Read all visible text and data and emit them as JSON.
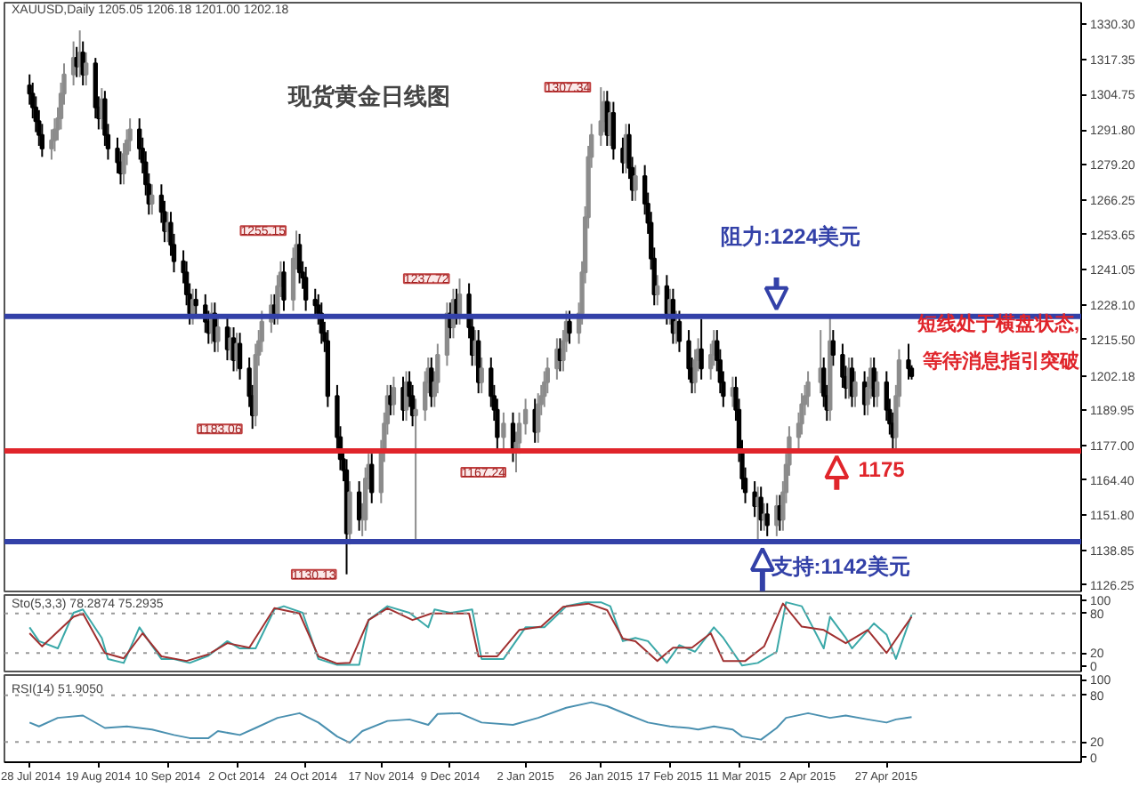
{
  "chart_data": [
    {
      "type": "candlestick",
      "title": "现货黄金日线图",
      "subtitle": "XAUUSD,Daily 1205.05 1206.18 1201.00 1202.18",
      "tick_labels": "y",
      "x": [
        "2014-07-28",
        "2014-07-29",
        "2014-07-30",
        "2014-07-31",
        "2014-08-01",
        "2014-08-04",
        "2014-08-05",
        "2014-08-06",
        "2014-08-07",
        "2014-08-08",
        "2014-08-11",
        "2014-08-12",
        "2014-08-13",
        "2014-08-14",
        "2014-08-15",
        "2014-08-18",
        "2014-08-19",
        "2014-08-20",
        "2014-08-21",
        "2014-08-22",
        "2014-08-25",
        "2014-08-26",
        "2014-08-27",
        "2014-08-28",
        "2014-08-29",
        "2014-09-01",
        "2014-09-02",
        "2014-09-03",
        "2014-09-04",
        "2014-09-05",
        "2014-09-08",
        "2014-09-09",
        "2014-09-10",
        "2014-09-11",
        "2014-09-12",
        "2014-09-15",
        "2014-09-16",
        "2014-09-17",
        "2014-09-18",
        "2014-09-19",
        "2014-09-22",
        "2014-09-23",
        "2014-09-24",
        "2014-09-25",
        "2014-09-26",
        "2014-09-29",
        "2014-09-30",
        "2014-10-01",
        "2014-10-02",
        "2014-10-03",
        "2014-10-06",
        "2014-10-07",
        "2014-10-08",
        "2014-10-09",
        "2014-10-10",
        "2014-10-13",
        "2014-10-14",
        "2014-10-15",
        "2014-10-16",
        "2014-10-17",
        "2014-10-20",
        "2014-10-21",
        "2014-10-22",
        "2014-10-23",
        "2014-10-24",
        "2014-10-27",
        "2014-10-28",
        "2014-10-29",
        "2014-10-30",
        "2014-10-31",
        "2014-11-03",
        "2014-11-04",
        "2014-11-05",
        "2014-11-06",
        "2014-11-07",
        "2014-11-10",
        "2014-11-11",
        "2014-11-12",
        "2014-11-13",
        "2014-11-14",
        "2014-11-17",
        "2014-11-18",
        "2014-11-19",
        "2014-11-20",
        "2014-11-21",
        "2014-11-24",
        "2014-11-25",
        "2014-11-26",
        "2014-11-27",
        "2014-11-28",
        "2014-12-01",
        "2014-12-02",
        "2014-12-03",
        "2014-12-04",
        "2014-12-05",
        "2014-12-08",
        "2014-12-09",
        "2014-12-10",
        "2014-12-11",
        "2014-12-12",
        "2014-12-15",
        "2014-12-16",
        "2014-12-17",
        "2014-12-18",
        "2014-12-19",
        "2014-12-22",
        "2014-12-23",
        "2014-12-24",
        "2014-12-26",
        "2014-12-29",
        "2014-12-30",
        "2014-12-31",
        "2015-01-02",
        "2015-01-05",
        "2015-01-06",
        "2015-01-07",
        "2015-01-08",
        "2015-01-09",
        "2015-01-12",
        "2015-01-13",
        "2015-01-14",
        "2015-01-15",
        "2015-01-16",
        "2015-01-19",
        "2015-01-20",
        "2015-01-21",
        "2015-01-22",
        "2015-01-23",
        "2015-01-26",
        "2015-01-27",
        "2015-01-28",
        "2015-01-29",
        "2015-01-30",
        "2015-02-02",
        "2015-02-03",
        "2015-02-04",
        "2015-02-05",
        "2015-02-06",
        "2015-02-09",
        "2015-02-10",
        "2015-02-11",
        "2015-02-12",
        "2015-02-13",
        "2015-02-16",
        "2015-02-17",
        "2015-02-18",
        "2015-02-19",
        "2015-02-20",
        "2015-02-23",
        "2015-02-24",
        "2015-02-25",
        "2015-02-26",
        "2015-02-27",
        "2015-03-02",
        "2015-03-03",
        "2015-03-04",
        "2015-03-05",
        "2015-03-06",
        "2015-03-09",
        "2015-03-10",
        "2015-03-11",
        "2015-03-12",
        "2015-03-13",
        "2015-03-16",
        "2015-03-17",
        "2015-03-18",
        "2015-03-19",
        "2015-03-20",
        "2015-03-23",
        "2015-03-24",
        "2015-03-25",
        "2015-03-26",
        "2015-03-27",
        "2015-03-30",
        "2015-03-31",
        "2015-04-01",
        "2015-04-02",
        "2015-04-06",
        "2015-04-07",
        "2015-04-08",
        "2015-04-09",
        "2015-04-10",
        "2015-04-13",
        "2015-04-14",
        "2015-04-15",
        "2015-04-16",
        "2015-04-17",
        "2015-04-20",
        "2015-04-21",
        "2015-04-22",
        "2015-04-23",
        "2015-04-24",
        "2015-04-27",
        "2015-04-28",
        "2015-04-29",
        "2015-04-30",
        "2015-05-01",
        "2015-05-04",
        "2015-05-05"
      ],
      "ohlc": [
        [
          1308,
          1312,
          1301,
          1305
        ],
        [
          1305,
          1309,
          1296,
          1300
        ],
        [
          1300,
          1304,
          1291,
          1295
        ],
        [
          1295,
          1299,
          1286,
          1290
        ],
        [
          1290,
          1294,
          1282,
          1285
        ],
        [
          1285,
          1292,
          1281,
          1288
        ],
        [
          1288,
          1296,
          1284,
          1292
        ],
        [
          1292,
          1300,
          1288,
          1296
        ],
        [
          1296,
          1309,
          1292,
          1305
        ],
        [
          1305,
          1316,
          1301,
          1312
        ],
        [
          1312,
          1324,
          1308,
          1318
        ],
        [
          1318,
          1322,
          1311,
          1315
        ],
        [
          1315,
          1328,
          1311,
          1320
        ],
        [
          1320,
          1324,
          1308,
          1312
        ],
        [
          1312,
          1320,
          1308,
          1316
        ],
        [
          1316,
          1318,
          1296,
          1300
        ],
        [
          1300,
          1304,
          1292,
          1296
        ],
        [
          1296,
          1307,
          1292,
          1303
        ],
        [
          1303,
          1306,
          1286,
          1290
        ],
        [
          1290,
          1294,
          1281,
          1285
        ],
        [
          1285,
          1289,
          1276,
          1280
        ],
        [
          1280,
          1284,
          1272,
          1276
        ],
        [
          1276,
          1287,
          1272,
          1283
        ],
        [
          1283,
          1292,
          1279,
          1288
        ],
        [
          1288,
          1296,
          1284,
          1292
        ],
        [
          1292,
          1296,
          1281,
          1285
        ],
        [
          1285,
          1289,
          1276,
          1280
        ],
        [
          1280,
          1284,
          1268,
          1272
        ],
        [
          1272,
          1276,
          1261,
          1265
        ],
        [
          1265,
          1272,
          1261,
          1268
        ],
        [
          1268,
          1272,
          1258,
          1262
        ],
        [
          1262,
          1266,
          1251,
          1255
        ],
        [
          1255,
          1262,
          1251,
          1258
        ],
        [
          1258,
          1262,
          1246,
          1250
        ],
        [
          1250,
          1254,
          1240,
          1244
        ],
        [
          1244,
          1248,
          1236,
          1240
        ],
        [
          1240,
          1244,
          1228,
          1232
        ],
        [
          1232,
          1236,
          1221,
          1225
        ],
        [
          1225,
          1234,
          1221,
          1230
        ],
        [
          1230,
          1234,
          1224,
          1228
        ],
        [
          1228,
          1232,
          1218,
          1222
        ],
        [
          1222,
          1226,
          1214,
          1218
        ],
        [
          1218,
          1229,
          1214,
          1225
        ],
        [
          1225,
          1229,
          1211,
          1215
        ],
        [
          1215,
          1224,
          1211,
          1220
        ],
        [
          1220,
          1224,
          1208,
          1212
        ],
        [
          1212,
          1220,
          1208,
          1216
        ],
        [
          1216,
          1220,
          1204,
          1208
        ],
        [
          1208,
          1218,
          1204,
          1214
        ],
        [
          1214,
          1218,
          1201,
          1205
        ],
        [
          1205,
          1209,
          1191,
          1195
        ],
        [
          1195,
          1199,
          1183.06,
          1188
        ],
        [
          1188,
          1214,
          1184,
          1210
        ],
        [
          1210,
          1219,
          1206,
          1215
        ],
        [
          1215,
          1226,
          1211,
          1222
        ],
        [
          1222,
          1232,
          1218,
          1228
        ],
        [
          1228,
          1232,
          1221,
          1225
        ],
        [
          1225,
          1239,
          1221,
          1235
        ],
        [
          1235,
          1244,
          1231,
          1240
        ],
        [
          1240,
          1244,
          1226,
          1230
        ],
        [
          1230,
          1249,
          1226,
          1245
        ],
        [
          1245,
          1255.15,
          1241,
          1250
        ],
        [
          1250,
          1254,
          1236,
          1240
        ],
        [
          1240,
          1244,
          1234,
          1238
        ],
        [
          1238,
          1242,
          1226,
          1230
        ],
        [
          1230,
          1234,
          1224,
          1228
        ],
        [
          1228,
          1232,
          1221,
          1225
        ],
        [
          1225,
          1229,
          1214,
          1218
        ],
        [
          1218,
          1222,
          1211,
          1215
        ],
        [
          1215,
          1219,
          1191,
          1195
        ],
        [
          1195,
          1199,
          1176,
          1180
        ],
        [
          1180,
          1184,
          1168,
          1172
        ],
        [
          1172,
          1176,
          1164,
          1168
        ],
        [
          1168,
          1172,
          1130.13,
          1145
        ],
        [
          1145,
          1164,
          1141,
          1160
        ],
        [
          1160,
          1164,
          1146,
          1150
        ],
        [
          1150,
          1156,
          1144,
          1150
        ],
        [
          1150,
          1169,
          1146,
          1165
        ],
        [
          1165,
          1174,
          1161,
          1170
        ],
        [
          1170,
          1174,
          1156,
          1160
        ],
        [
          1160,
          1179,
          1156,
          1175
        ],
        [
          1175,
          1189,
          1171,
          1185
        ],
        [
          1185,
          1199,
          1181,
          1195
        ],
        [
          1195,
          1199,
          1188,
          1192
        ],
        [
          1192,
          1202,
          1188,
          1198
        ],
        [
          1198,
          1202,
          1186,
          1190
        ],
        [
          1190,
          1204,
          1186,
          1200
        ],
        [
          1200,
          1204,
          1191,
          1195
        ],
        [
          1195,
          1199,
          1184,
          1188
        ],
        [
          1188,
          1194,
          1143,
          1190
        ],
        [
          1190,
          1204,
          1186,
          1200
        ],
        [
          1200,
          1209,
          1196,
          1205
        ],
        [
          1205,
          1209,
          1191,
          1195
        ],
        [
          1195,
          1204,
          1191,
          1200
        ],
        [
          1200,
          1214,
          1196,
          1210
        ],
        [
          1210,
          1229,
          1206,
          1225
        ],
        [
          1225,
          1229,
          1216,
          1220
        ],
        [
          1220,
          1234,
          1216,
          1230
        ],
        [
          1230,
          1234,
          1221,
          1225
        ],
        [
          1225,
          1237.72,
          1221,
          1232
        ],
        [
          1232,
          1236,
          1216,
          1220
        ],
        [
          1220,
          1224,
          1206,
          1210
        ],
        [
          1210,
          1219,
          1206,
          1215
        ],
        [
          1215,
          1219,
          1196,
          1200
        ],
        [
          1200,
          1209,
          1196,
          1205
        ],
        [
          1205,
          1209,
          1191,
          1195
        ],
        [
          1195,
          1199,
          1186,
          1190
        ],
        [
          1190,
          1194,
          1176,
          1180
        ],
        [
          1180,
          1189,
          1176,
          1185
        ],
        [
          1185,
          1189,
          1171,
          1175
        ],
        [
          1175,
          1182,
          1167.24,
          1178
        ],
        [
          1178,
          1189,
          1174,
          1185
        ],
        [
          1185,
          1194,
          1181,
          1190
        ],
        [
          1190,
          1194,
          1178,
          1182
        ],
        [
          1182,
          1196,
          1178,
          1192
        ],
        [
          1192,
          1199,
          1188,
          1195
        ],
        [
          1195,
          1204,
          1191,
          1200
        ],
        [
          1200,
          1209,
          1196,
          1205
        ],
        [
          1205,
          1216,
          1201,
          1212
        ],
        [
          1212,
          1216,
          1204,
          1208
        ],
        [
          1208,
          1219,
          1204,
          1215
        ],
        [
          1215,
          1226,
          1211,
          1222
        ],
        [
          1222,
          1226,
          1214,
          1218
        ],
        [
          1218,
          1229,
          1214,
          1225
        ],
        [
          1225,
          1244,
          1221,
          1240
        ],
        [
          1240,
          1264,
          1236,
          1260
        ],
        [
          1260,
          1286,
          1256,
          1282
        ],
        [
          1282,
          1294,
          1278,
          1290
        ],
        [
          1290,
          1307.34,
          1286,
          1295
        ],
        [
          1295,
          1306,
          1291,
          1302
        ],
        [
          1302,
          1306,
          1286,
          1290
        ],
        [
          1290,
          1302,
          1286,
          1298
        ],
        [
          1298,
          1302,
          1281,
          1285
        ],
        [
          1285,
          1289,
          1276,
          1280
        ],
        [
          1280,
          1294,
          1276,
          1290
        ],
        [
          1290,
          1294,
          1274,
          1278
        ],
        [
          1278,
          1282,
          1266,
          1270
        ],
        [
          1270,
          1279,
          1266,
          1275
        ],
        [
          1275,
          1279,
          1261,
          1265
        ],
        [
          1265,
          1269,
          1254,
          1258
        ],
        [
          1258,
          1262,
          1241,
          1245
        ],
        [
          1245,
          1249,
          1228,
          1232
        ],
        [
          1232,
          1239,
          1228,
          1235
        ],
        [
          1235,
          1239,
          1221,
          1225
        ],
        [
          1225,
          1234,
          1221,
          1230
        ],
        [
          1230,
          1234,
          1214,
          1218
        ],
        [
          1218,
          1226,
          1214,
          1222
        ],
        [
          1222,
          1226,
          1211,
          1215
        ],
        [
          1215,
          1219,
          1201,
          1205
        ],
        [
          1205,
          1209,
          1196,
          1200
        ],
        [
          1200,
          1212,
          1196,
          1208
        ],
        [
          1208,
          1216,
          1204,
          1212
        ],
        [
          1212,
          1223,
          1201,
          1205
        ],
        [
          1205,
          1214,
          1201,
          1210
        ],
        [
          1210,
          1219,
          1206,
          1215
        ],
        [
          1215,
          1219,
          1204,
          1208
        ],
        [
          1208,
          1212,
          1196,
          1200
        ],
        [
          1200,
          1204,
          1191,
          1195
        ],
        [
          1195,
          1202,
          1191,
          1198
        ],
        [
          1198,
          1202,
          1186,
          1190
        ],
        [
          1190,
          1194,
          1171,
          1175
        ],
        [
          1175,
          1179,
          1161,
          1165
        ],
        [
          1165,
          1169,
          1156,
          1160
        ],
        [
          1160,
          1164,
          1151,
          1155
        ],
        [
          1155,
          1162,
          1142,
          1158
        ],
        [
          1158,
          1162,
          1146,
          1150
        ],
        [
          1150,
          1156,
          1146,
          1152
        ],
        [
          1152,
          1156,
          1144,
          1148
        ],
        [
          1148,
          1159,
          1144,
          1155
        ],
        [
          1155,
          1159,
          1146,
          1150
        ],
        [
          1150,
          1164,
          1146,
          1160
        ],
        [
          1160,
          1174,
          1156,
          1170
        ],
        [
          1170,
          1184,
          1166,
          1180
        ],
        [
          1180,
          1189,
          1176,
          1185
        ],
        [
          1185,
          1196,
          1181,
          1192
        ],
        [
          1192,
          1199,
          1188,
          1195
        ],
        [
          1195,
          1204,
          1191,
          1200
        ],
        [
          1200,
          1219,
          1196,
          1205
        ],
        [
          1205,
          1209,
          1191,
          1195
        ],
        [
          1195,
          1199,
          1186,
          1190
        ],
        [
          1190,
          1224,
          1186,
          1215
        ],
        [
          1215,
          1219,
          1206,
          1210
        ],
        [
          1210,
          1214,
          1198,
          1202
        ],
        [
          1202,
          1206,
          1194,
          1198
        ],
        [
          1198,
          1209,
          1194,
          1205
        ],
        [
          1205,
          1209,
          1191,
          1195
        ],
        [
          1195,
          1204,
          1191,
          1200
        ],
        [
          1200,
          1204,
          1188,
          1192
        ],
        [
          1192,
          1202,
          1188,
          1198
        ],
        [
          1198,
          1209,
          1194,
          1205
        ],
        [
          1205,
          1209,
          1191,
          1195
        ],
        [
          1195,
          1204,
          1191,
          1200
        ],
        [
          1200,
          1204,
          1186,
          1190
        ],
        [
          1190,
          1194,
          1181,
          1185
        ],
        [
          1185,
          1189,
          1175,
          1180
        ],
        [
          1180,
          1199,
          1176,
          1195
        ],
        [
          1195,
          1212,
          1191,
          1208
        ],
        [
          1208,
          1214,
          1201,
          1205.05
        ],
        [
          1205.05,
          1206.18,
          1201.0,
          1202.18
        ]
      ],
      "xlim": [
        "2014-07-20",
        "2015-06-28"
      ],
      "ylim": [
        1123.9,
        1338.1
      ],
      "yticks": [
        {
          "value": 1330.3,
          "label": "1330.30"
        },
        1317.35,
        1304.75,
        {
          "value": 1291.8,
          "label": "1291.80"
        },
        {
          "value": 1279.2,
          "label": "1279.20"
        },
        1266.25,
        1253.65,
        1241.05,
        {
          "value": 1228.1,
          "label": "1228.10"
        },
        {
          "value": 1215.5,
          "label": "1215.50"
        },
        1202.18,
        1189.95,
        {
          "value": 1177,
          "label": "1177.00"
        },
        {
          "value": 1164.4,
          "label": "1164.40"
        },
        {
          "value": 1151.8,
          "label": "1151.80"
        },
        1138.85,
        1126.25
      ],
      "ref_lines": [
        {
          "axis": "y",
          "value": 1224,
          "label": "阻力:1224美元",
          "color": "#3341a8"
        },
        {
          "axis": "y",
          "value": 1142,
          "label": "支持:1142美元",
          "color": "#3341a8"
        },
        {
          "axis": "y",
          "value": 1175,
          "label": "1175",
          "color": "#e0252b"
        }
      ],
      "annotations": [
        "短线处于横盘状态,",
        "等待消息指引突破",
        {
          "text": "1183.06",
          "x": "2014-10-07",
          "y": 1183.06
        },
        {
          "text": "1255.15",
          "x": "2014-10-21",
          "y": 1255.15
        },
        {
          "text": "1130.13",
          "x": "2014-11-06",
          "y": 1130.13
        },
        {
          "text": "1237.72",
          "x": "2014-12-12",
          "y": 1237.72
        },
        {
          "text": "1167.24",
          "x": "2014-12-30",
          "y": 1167.24
        },
        {
          "text": "1307.34",
          "x": "2015-01-26",
          "y": 1307.34
        }
      ]
    },
    {
      "type": "line",
      "title": "Sto(5,3,3) 78.2874 75.2935",
      "tick_labels": "y",
      "xlim": [
        "2014-07-20",
        "2015-06-28"
      ],
      "ylim": [
        -8,
        108
      ],
      "yticks": [
        0,
        20,
        80,
        100
      ],
      "ref_lines": [
        {
          "axis": "y",
          "value": 20,
          "color": "#999999",
          "line_style": "dotted"
        },
        {
          "axis": "y",
          "value": 80,
          "color": "#999999",
          "line_style": "dotted"
        }
      ],
      "series": [
        {
          "color": "#3aa8a8",
          "x": [
            "2014-07-28",
            "2014-07-31",
            "2014-08-06",
            "2014-08-11",
            "2014-08-14",
            "2014-08-20",
            "2014-08-22",
            "2014-08-27",
            "2014-09-01",
            "2014-09-04",
            "2014-09-08",
            "2014-09-12",
            "2014-09-17",
            "2014-09-23",
            "2014-09-29",
            "2014-10-03",
            "2014-10-08",
            "2014-10-14",
            "2014-10-17",
            "2014-10-23",
            "2014-10-28",
            "2014-11-03",
            "2014-11-10",
            "2014-11-13",
            "2014-11-19",
            "2014-11-26",
            "2014-12-02",
            "2014-12-04",
            "2014-12-09",
            "2014-12-16",
            "2014-12-19",
            "2014-12-26",
            "2015-01-02",
            "2015-01-08",
            "2015-01-15",
            "2015-01-21",
            "2015-01-26",
            "2015-01-29",
            "2015-02-02",
            "2015-02-06",
            "2015-02-10",
            "2015-02-16",
            "2015-02-20",
            "2015-02-25",
            "2015-03-03",
            "2015-03-06",
            "2015-03-12",
            "2015-03-17",
            "2015-03-23",
            "2015-03-26",
            "2015-03-31",
            "2015-04-07",
            "2015-04-09",
            "2015-04-14",
            "2015-04-16",
            "2015-04-23",
            "2015-04-27",
            "2015-04-30",
            "2015-05-05"
          ],
          "values": [
            59,
            38,
            27,
            81,
            86,
            43,
            11,
            5,
            59,
            38,
            11,
            11,
            5,
            16,
            38,
            27,
            27,
            86,
            91,
            81,
            11,
            2,
            2,
            70,
            91,
            81,
            59,
            86,
            81,
            86,
            11,
            11,
            59,
            59,
            91,
            97,
            97,
            91,
            38,
            43,
            38,
            5,
            32,
            22,
            59,
            43,
            1,
            5,
            22,
            97,
            91,
            27,
            75,
            43,
            27,
            65,
            48,
            11,
            78
          ]
        },
        {
          "color": "#a03030",
          "x": [
            "2014-07-28",
            "2014-08-01",
            "2014-08-11",
            "2014-08-14",
            "2014-08-21",
            "2014-08-27",
            "2014-09-02",
            "2014-09-08",
            "2014-09-16",
            "2014-09-23",
            "2014-09-29",
            "2014-10-06",
            "2014-10-14",
            "2014-10-22",
            "2014-10-28",
            "2014-11-03",
            "2014-11-07",
            "2014-11-13",
            "2014-11-19",
            "2014-11-27",
            "2014-12-03",
            "2014-12-15",
            "2014-12-18",
            "2014-12-24",
            "2014-12-31",
            "2015-01-07",
            "2015-01-14",
            "2015-01-22",
            "2015-01-28",
            "2015-02-02",
            "2015-02-06",
            "2015-02-13",
            "2015-02-18",
            "2015-02-24",
            "2015-03-02",
            "2015-03-06",
            "2015-03-13",
            "2015-03-19",
            "2015-03-25",
            "2015-03-31",
            "2015-04-07",
            "2015-04-14",
            "2015-04-21",
            "2015-04-27",
            "2015-05-05"
          ],
          "values": [
            50,
            30,
            75,
            80,
            20,
            12,
            50,
            15,
            8,
            18,
            35,
            28,
            88,
            80,
            15,
            4,
            5,
            70,
            88,
            70,
            80,
            80,
            15,
            15,
            55,
            60,
            90,
            95,
            85,
            42,
            38,
            8,
            28,
            28,
            50,
            8,
            8,
            30,
            95,
            60,
            55,
            35,
            55,
            20,
            75
          ]
        }
      ]
    },
    {
      "type": "line",
      "title": "RSI(14) 51.9050",
      "xlim": [
        "2014-07-20",
        "2015-06-28"
      ],
      "ylim": [
        -6,
        106
      ],
      "yticks": [
        0,
        20,
        80,
        100
      ],
      "xticks": [
        {
          "value": "2014-07-28",
          "label": "28 Jul 2014"
        },
        {
          "value": "2014-08-19",
          "label": "19 Aug 2014"
        },
        {
          "value": "2014-09-10",
          "label": "10 Sep 2014"
        },
        {
          "value": "2014-10-02",
          "label": "2 Oct 2014"
        },
        {
          "value": "2014-10-24",
          "label": "24 Oct 2014"
        },
        {
          "value": "2014-11-17",
          "label": "17 Nov 2014"
        },
        {
          "value": "2014-12-09",
          "label": "9 Dec 2014"
        },
        {
          "value": "2015-01-02",
          "label": "2 Jan 2015"
        },
        {
          "value": "2015-01-26",
          "label": "26 Jan 2015"
        },
        {
          "value": "2015-02-17",
          "label": "17 Feb 2015"
        },
        {
          "value": "2015-03-11",
          "label": "11 Mar 2015"
        },
        {
          "value": "2015-04-02",
          "label": "2 Apr 2015"
        },
        {
          "value": "2015-04-27",
          "label": "27 Apr 2015"
        }
      ],
      "ref_lines": [
        {
          "axis": "y",
          "value": 20,
          "color": "#999999",
          "line_style": "dotted"
        },
        {
          "axis": "y",
          "value": 80,
          "color": "#999999",
          "line_style": "dotted"
        }
      ],
      "series": [
        {
          "color": "#4a90b0",
          "x": [
            "2014-07-28",
            "2014-07-31",
            "2014-08-06",
            "2014-08-14",
            "2014-08-21",
            "2014-08-28",
            "2014-09-05",
            "2014-09-12",
            "2014-09-17",
            "2014-09-23",
            "2014-09-26",
            "2014-10-03",
            "2014-10-08",
            "2014-10-15",
            "2014-10-22",
            "2014-10-28",
            "2014-11-03",
            "2014-11-07",
            "2014-11-11",
            "2014-11-19",
            "2014-11-26",
            "2014-12-02",
            "2014-12-05",
            "2014-12-12",
            "2014-12-19",
            "2014-12-29",
            "2015-01-06",
            "2015-01-15",
            "2015-01-23",
            "2015-01-28",
            "2015-02-03",
            "2015-02-10",
            "2015-02-17",
            "2015-02-23",
            "2015-02-26",
            "2015-03-03",
            "2015-03-09",
            "2015-03-12",
            "2015-03-18",
            "2015-03-23",
            "2015-03-26",
            "2015-04-02",
            "2015-04-09",
            "2015-04-14",
            "2015-04-21",
            "2015-04-27",
            "2015-04-30",
            "2015-05-05"
          ],
          "values": [
            45,
            40,
            51,
            54,
            38,
            40,
            36,
            29,
            25,
            25,
            34,
            29,
            38,
            51,
            57,
            45,
            27,
            19,
            34,
            47,
            49,
            42,
            56,
            57,
            45,
            42,
            51,
            64,
            71,
            66,
            56,
            45,
            40,
            38,
            36,
            40,
            36,
            27,
            23,
            38,
            51,
            57,
            51,
            54,
            49,
            45,
            49,
            52
          ]
        }
      ]
    }
  ]
}
